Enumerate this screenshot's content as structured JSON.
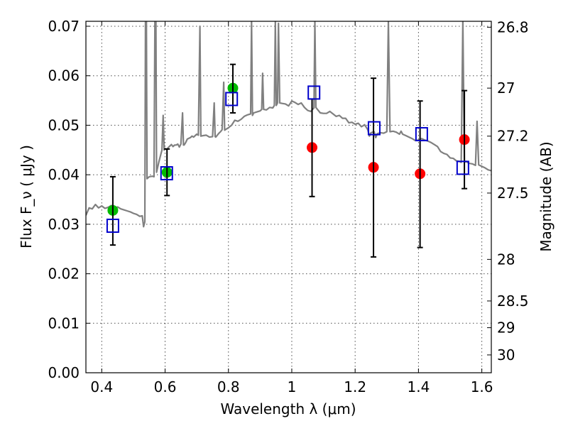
{
  "chart_data": {
    "type": "scatter",
    "xlabel": "Wavelength  λ (μm)",
    "ylabel": "Flux  F_ν  ( μJy )",
    "ylabel_right": "Magnitude (AB)",
    "xlim": [
      0.35,
      1.63
    ],
    "ylim": [
      0.0,
      0.071
    ],
    "grid": true,
    "x_ticks": [
      0.4,
      0.6,
      0.8,
      1.0,
      1.2,
      1.4,
      1.6
    ],
    "x_tick_labels": [
      "0.4",
      "0.6",
      "0.8",
      "1",
      "1.2",
      "1.4",
      "1.6"
    ],
    "y_ticks": [
      0.0,
      0.01,
      0.02,
      0.03,
      0.04,
      0.05,
      0.06,
      0.07
    ],
    "y_tick_labels": [
      "0.00",
      "0.01",
      "0.02",
      "0.03",
      "0.04",
      "0.05",
      "0.06",
      "0.07"
    ],
    "right_ticks": [
      {
        "label": "26.8",
        "flux": 0.0698
      },
      {
        "label": "27",
        "flux": 0.0575
      },
      {
        "label": "27.2",
        "flux": 0.0478
      },
      {
        "label": "27.5",
        "flux": 0.0363
      },
      {
        "label": "28",
        "flux": 0.0229
      },
      {
        "label": "28.5",
        "flux": 0.0145
      },
      {
        "label": "29",
        "flux": 0.0091
      },
      {
        "label": "30",
        "flux": 0.0036
      }
    ],
    "series": [
      {
        "marker": "circle",
        "color": "#00bb00",
        "points": [
          {
            "x": 0.435,
            "y": 0.0328
          },
          {
            "x": 0.606,
            "y": 0.0405
          },
          {
            "x": 0.814,
            "y": 0.0575
          }
        ]
      },
      {
        "marker": "circle",
        "color": "#ff0000",
        "points": [
          {
            "x": 1.064,
            "y": 0.0455
          },
          {
            "x": 1.258,
            "y": 0.0415
          },
          {
            "x": 1.405,
            "y": 0.0402
          },
          {
            "x": 1.545,
            "y": 0.0471
          }
        ]
      },
      {
        "marker": "square-open",
        "color": "#0000cc",
        "points": [
          {
            "x": 0.435,
            "y": 0.0297
          },
          {
            "x": 0.605,
            "y": 0.0403
          },
          {
            "x": 0.81,
            "y": 0.0553
          },
          {
            "x": 1.07,
            "y": 0.0566
          },
          {
            "x": 1.26,
            "y": 0.0494
          },
          {
            "x": 1.41,
            "y": 0.0482
          },
          {
            "x": 1.54,
            "y": 0.0414
          }
        ]
      },
      {
        "marker": "errorbar",
        "color": "#000000",
        "points": [
          {
            "x": 0.435,
            "ylow": 0.0258,
            "yhigh": 0.0396
          },
          {
            "x": 0.606,
            "ylow": 0.0358,
            "yhigh": 0.0452
          },
          {
            "x": 0.814,
            "ylow": 0.0525,
            "yhigh": 0.0623
          },
          {
            "x": 1.064,
            "ylow": 0.0356,
            "yhigh": 0.0553
          },
          {
            "x": 1.258,
            "ylow": 0.0234,
            "yhigh": 0.0595
          },
          {
            "x": 1.405,
            "ylow": 0.0253,
            "yhigh": 0.0549
          },
          {
            "x": 1.545,
            "ylow": 0.0372,
            "yhigh": 0.057
          }
        ]
      },
      {
        "marker": "line",
        "color": "#808080",
        "points": [
          [
            0.35,
            0.0318
          ],
          [
            0.36,
            0.0333
          ],
          [
            0.37,
            0.0331
          ],
          [
            0.38,
            0.034
          ],
          [
            0.39,
            0.0333
          ],
          [
            0.4,
            0.0337
          ],
          [
            0.41,
            0.0332
          ],
          [
            0.42,
            0.0334
          ],
          [
            0.43,
            0.0338
          ],
          [
            0.44,
            0.0331
          ],
          [
            0.45,
            0.0335
          ],
          [
            0.46,
            0.0331
          ],
          [
            0.47,
            0.0329
          ],
          [
            0.48,
            0.0327
          ],
          [
            0.49,
            0.0325
          ],
          [
            0.5,
            0.0322
          ],
          [
            0.51,
            0.032
          ],
          [
            0.52,
            0.0316
          ],
          [
            0.528,
            0.0317
          ],
          [
            0.532,
            0.0295
          ],
          [
            0.536,
            0.0305
          ],
          [
            0.538,
            0.071
          ],
          [
            0.541,
            0.071
          ],
          [
            0.543,
            0.0392
          ],
          [
            0.55,
            0.0396
          ],
          [
            0.56,
            0.0397
          ],
          [
            0.565,
            0.0396
          ],
          [
            0.568,
            0.071
          ],
          [
            0.571,
            0.071
          ],
          [
            0.573,
            0.0405
          ],
          [
            0.58,
            0.0425
          ],
          [
            0.59,
            0.045
          ],
          [
            0.594,
            0.052
          ],
          [
            0.597,
            0.045
          ],
          [
            0.6,
            0.0453
          ],
          [
            0.605,
            0.0451
          ],
          [
            0.61,
            0.0455
          ],
          [
            0.62,
            0.0461
          ],
          [
            0.625,
            0.0457
          ],
          [
            0.63,
            0.046
          ],
          [
            0.635,
            0.046
          ],
          [
            0.64,
            0.0462
          ],
          [
            0.645,
            0.0456
          ],
          [
            0.65,
            0.0462
          ],
          [
            0.655,
            0.0525
          ],
          [
            0.658,
            0.046
          ],
          [
            0.66,
            0.046
          ],
          [
            0.665,
            0.0465
          ],
          [
            0.67,
            0.0472
          ],
          [
            0.68,
            0.0475
          ],
          [
            0.685,
            0.0478
          ],
          [
            0.69,
            0.0476
          ],
          [
            0.695,
            0.0479
          ],
          [
            0.7,
            0.0482
          ],
          [
            0.705,
            0.048
          ],
          [
            0.71,
            0.07
          ],
          [
            0.713,
            0.0478
          ],
          [
            0.72,
            0.0479
          ],
          [
            0.73,
            0.048
          ],
          [
            0.74,
            0.0476
          ],
          [
            0.75,
            0.0477
          ],
          [
            0.755,
            0.0545
          ],
          [
            0.758,
            0.0477
          ],
          [
            0.76,
            0.0476
          ],
          [
            0.77,
            0.0484
          ],
          [
            0.775,
            0.0487
          ],
          [
            0.78,
            0.0491
          ],
          [
            0.785,
            0.0587
          ],
          [
            0.788,
            0.049
          ],
          [
            0.79,
            0.0491
          ],
          [
            0.8,
            0.0495
          ],
          [
            0.81,
            0.05
          ],
          [
            0.82,
            0.051
          ],
          [
            0.83,
            0.0508
          ],
          [
            0.84,
            0.0512
          ],
          [
            0.85,
            0.0518
          ],
          [
            0.86,
            0.0521
          ],
          [
            0.87,
            0.0523
          ],
          [
            0.873,
            0.071
          ],
          [
            0.876,
            0.052
          ],
          [
            0.88,
            0.0525
          ],
          [
            0.89,
            0.0527
          ],
          [
            0.9,
            0.0529
          ],
          [
            0.905,
            0.0532
          ],
          [
            0.908,
            0.0605
          ],
          [
            0.911,
            0.0532
          ],
          [
            0.92,
            0.0531
          ],
          [
            0.93,
            0.0536
          ],
          [
            0.94,
            0.0535
          ],
          [
            0.945,
            0.054
          ],
          [
            0.948,
            0.071
          ],
          [
            0.951,
            0.054
          ],
          [
            0.955,
            0.0545
          ],
          [
            0.958,
            0.0706
          ],
          [
            0.962,
            0.0545
          ],
          [
            0.97,
            0.0544
          ],
          [
            0.98,
            0.0543
          ],
          [
            0.99,
            0.0539
          ],
          [
            1.0,
            0.0549
          ],
          [
            1.01,
            0.0546
          ],
          [
            1.02,
            0.0542
          ],
          [
            1.03,
            0.0545
          ],
          [
            1.04,
            0.0536
          ],
          [
            1.05,
            0.053
          ],
          [
            1.06,
            0.0528
          ],
          [
            1.07,
            0.0535
          ],
          [
            1.073,
            0.071
          ],
          [
            1.076,
            0.0536
          ],
          [
            1.08,
            0.0533
          ],
          [
            1.09,
            0.0525
          ],
          [
            1.1,
            0.0524
          ],
          [
            1.11,
            0.0524
          ],
          [
            1.12,
            0.0528
          ],
          [
            1.13,
            0.0523
          ],
          [
            1.14,
            0.0518
          ],
          [
            1.15,
            0.052
          ],
          [
            1.16,
            0.0514
          ],
          [
            1.17,
            0.0514
          ],
          [
            1.18,
            0.0505
          ],
          [
            1.19,
            0.0506
          ],
          [
            1.2,
            0.0502
          ],
          [
            1.21,
            0.0504
          ],
          [
            1.22,
            0.0497
          ],
          [
            1.23,
            0.0501
          ],
          [
            1.24,
            0.0491
          ],
          [
            1.245,
            0.0478
          ],
          [
            1.25,
            0.0485
          ],
          [
            1.26,
            0.0487
          ],
          [
            1.265,
            0.0475
          ],
          [
            1.27,
            0.0483
          ],
          [
            1.28,
            0.0485
          ],
          [
            1.29,
            0.0484
          ],
          [
            1.3,
            0.0487
          ],
          [
            1.305,
            0.071
          ],
          [
            1.31,
            0.0487
          ],
          [
            1.32,
            0.0488
          ],
          [
            1.33,
            0.0486
          ],
          [
            1.34,
            0.0482
          ],
          [
            1.345,
            0.0488
          ],
          [
            1.35,
            0.0482
          ],
          [
            1.36,
            0.0479
          ],
          [
            1.37,
            0.0476
          ],
          [
            1.38,
            0.0473
          ],
          [
            1.39,
            0.0469
          ],
          [
            1.4,
            0.047
          ],
          [
            1.41,
            0.0473
          ],
          [
            1.42,
            0.047
          ],
          [
            1.43,
            0.0468
          ],
          [
            1.44,
            0.0465
          ],
          [
            1.45,
            0.0461
          ],
          [
            1.46,
            0.0457
          ],
          [
            1.47,
            0.0447
          ],
          [
            1.48,
            0.0443
          ],
          [
            1.49,
            0.0441
          ],
          [
            1.5,
            0.0434
          ],
          [
            1.51,
            0.0433
          ],
          [
            1.52,
            0.0428
          ],
          [
            1.53,
            0.0427
          ],
          [
            1.535,
            0.0425
          ],
          [
            1.54,
            0.071
          ],
          [
            1.545,
            0.0425
          ],
          [
            1.55,
            0.0427
          ],
          [
            1.56,
            0.0423
          ],
          [
            1.57,
            0.0422
          ],
          [
            1.58,
            0.0419
          ],
          [
            1.585,
            0.0508
          ],
          [
            1.59,
            0.042
          ],
          [
            1.6,
            0.0417
          ],
          [
            1.61,
            0.0414
          ],
          [
            1.62,
            0.041
          ],
          [
            1.63,
            0.0408
          ]
        ]
      }
    ]
  }
}
